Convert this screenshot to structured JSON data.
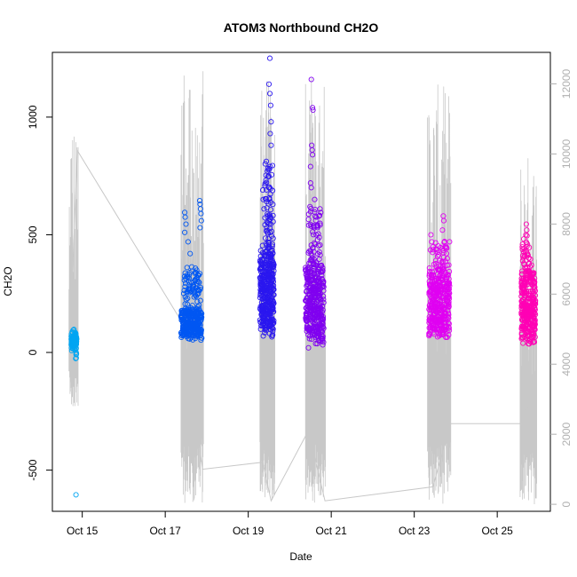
{
  "chart_data": {
    "type": "scatter",
    "title": "ATOM3 Northbound CH2O",
    "xlabel": "Date",
    "ylabel": "CH2O",
    "x_ticks": [
      "Oct 15",
      "Oct 17",
      "Oct 19",
      "Oct 21",
      "Oct 23",
      "Oct 25"
    ],
    "y_ticks": [
      -500,
      0,
      500,
      1000
    ],
    "y2_ticks": [
      0,
      2000,
      4000,
      6000,
      8000,
      10000,
      12000
    ],
    "xlim": [
      14.28,
      26.28
    ],
    "ylim": [
      -675,
      1275
    ],
    "y2lim": [
      -200,
      12900
    ],
    "grid": false,
    "legend": "none",
    "colors": {
      "secondary_line": "#c8c8c8",
      "right_axis": "#b0b0b0",
      "frame": "#000000"
    },
    "series": [
      {
        "kind": "points",
        "color": "#00a5f2",
        "clusters": [
          {
            "x": [
              14.73,
              14.87
            ],
            "y": [
              20,
              80
            ],
            "n": 90,
            "spread": 18
          },
          {
            "x": [
              14.84,
              14.86
            ],
            "y": [
              -45,
              0
            ],
            "n": 6,
            "spread": 5
          }
        ],
        "points": [
          [
            14.85,
            -605
          ],
          [
            14.78,
            95
          ],
          [
            14.8,
            98
          ],
          [
            14.83,
            85
          ]
        ]
      },
      {
        "kind": "points",
        "color": "#0057f2",
        "clusters": [
          {
            "x": [
              17.38,
              17.88
            ],
            "y": [
              70,
              180
            ],
            "n": 300,
            "spread": 28
          },
          {
            "x": [
              17.42,
              17.86
            ],
            "y": [
              180,
              340
            ],
            "n": 80,
            "spread": 50
          }
        ],
        "points": [
          [
            17.47,
            595
          ],
          [
            17.48,
            575
          ],
          [
            17.5,
            545
          ],
          [
            17.47,
            510
          ],
          [
            17.83,
            645
          ],
          [
            17.84,
            630
          ],
          [
            17.85,
            610
          ],
          [
            17.86,
            590
          ],
          [
            17.87,
            560
          ],
          [
            17.84,
            530
          ],
          [
            17.55,
            470
          ],
          [
            17.6,
            420
          ]
        ]
      },
      {
        "kind": "points",
        "color": "#2a17ef",
        "clusters": [
          {
            "x": [
              19.28,
              19.62
            ],
            "y": [
              100,
              420
            ],
            "n": 360,
            "spread": 70
          },
          {
            "x": [
              19.4,
              19.6
            ],
            "y": [
              420,
              800
            ],
            "n": 70,
            "spread": 80
          }
        ],
        "points": [
          [
            19.52,
            1250
          ],
          [
            19.5,
            1140
          ],
          [
            19.52,
            1100
          ],
          [
            19.54,
            1050
          ],
          [
            19.55,
            980
          ],
          [
            19.53,
            930
          ],
          [
            19.55,
            880
          ],
          [
            19.35,
            690
          ],
          [
            19.36,
            650
          ],
          [
            19.38,
            610
          ]
        ]
      },
      {
        "kind": "points",
        "color": "#8000f0",
        "clusters": [
          {
            "x": [
              20.38,
              20.82
            ],
            "y": [
              60,
              360
            ],
            "n": 360,
            "spread": 60
          },
          {
            "x": [
              20.45,
              20.75
            ],
            "y": [
              360,
              600
            ],
            "n": 60,
            "spread": 60
          }
        ],
        "points": [
          [
            20.52,
            1160
          ],
          [
            20.55,
            1040
          ],
          [
            20.56,
            1030
          ],
          [
            20.53,
            880
          ],
          [
            20.54,
            860
          ],
          [
            20.55,
            840
          ],
          [
            20.5,
            790
          ],
          [
            20.5,
            720
          ],
          [
            20.52,
            700
          ],
          [
            20.6,
            650
          ],
          [
            20.73,
            610
          ]
        ]
      },
      {
        "kind": "points",
        "color": "#e000f2",
        "clusters": [
          {
            "x": [
              23.35,
              23.85
            ],
            "y": [
              80,
              330
            ],
            "n": 360,
            "spread": 55
          },
          {
            "x": [
              23.38,
              23.8
            ],
            "y": [
              330,
              460
            ],
            "n": 50,
            "spread": 35
          }
        ],
        "points": [
          [
            23.4,
            500
          ],
          [
            23.42,
            470
          ],
          [
            23.7,
            580
          ],
          [
            23.71,
            560
          ],
          [
            23.68,
            520
          ],
          [
            23.85,
            470
          ]
        ]
      },
      {
        "kind": "points",
        "color": "#ff00b4",
        "clusters": [
          {
            "x": [
              25.58,
              25.92
            ],
            "y": [
              60,
              330
            ],
            "n": 320,
            "spread": 55
          },
          {
            "x": [
              25.6,
              25.8
            ],
            "y": [
              330,
              480
            ],
            "n": 40,
            "spread": 35
          }
        ],
        "points": [
          [
            25.7,
            545
          ],
          [
            25.71,
            520
          ],
          [
            25.69,
            500
          ],
          [
            25.9,
            315
          ],
          [
            25.92,
            220
          ]
        ]
      }
    ],
    "secondary_line": {
      "axis": "right",
      "color": "#c8c8c8",
      "path": [
        [
          14.7,
          4600
        ],
        [
          14.88,
          10100
        ],
        [
          17.4,
          5200
        ],
        [
          17.9,
          1000
        ],
        [
          19.35,
          1200
        ],
        [
          19.55,
          100
        ],
        [
          20.45,
          2100
        ],
        [
          20.85,
          100
        ],
        [
          23.45,
          500
        ],
        [
          23.87,
          2300
        ],
        [
          25.55,
          2300
        ],
        [
          25.9,
          3200
        ]
      ],
      "spikes": [
        {
          "x": [
            14.68,
            14.9
          ],
          "n": 26,
          "lo": 2800,
          "hi": 10500
        },
        {
          "x": [
            17.38,
            17.92
          ],
          "n": 60,
          "lo": 0,
          "hi": 12500
        },
        {
          "x": [
            19.28,
            19.64
          ],
          "n": 55,
          "lo": 0,
          "hi": 12100
        },
        {
          "x": [
            20.38,
            20.86
          ],
          "n": 65,
          "lo": 0,
          "hi": 12300
        },
        {
          "x": [
            23.32,
            23.88
          ],
          "n": 60,
          "lo": 0,
          "hi": 12000
        },
        {
          "x": [
            25.55,
            25.95
          ],
          "n": 45,
          "lo": 0,
          "hi": 10100
        }
      ]
    }
  }
}
